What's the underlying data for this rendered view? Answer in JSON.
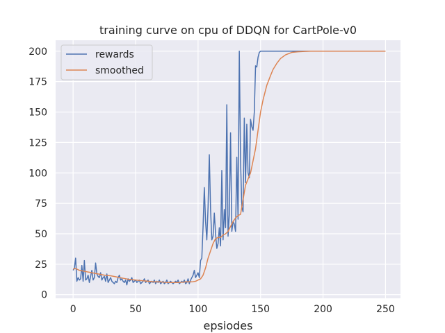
{
  "colors": {
    "plot_bg": "#EAEAF2",
    "grid": "#FFFFFF",
    "rewards": "#4C72B0",
    "smoothed": "#DD8452",
    "text": "#262626"
  },
  "chart_data": {
    "type": "line",
    "title": "training curve on cpu of DDQN for CartPole-v0",
    "xlabel": "epsiodes",
    "ylabel": "",
    "xlim": [
      -14,
      262
    ],
    "ylim": [
      -3,
      209
    ],
    "x_ticks": [
      0,
      50,
      100,
      150,
      200,
      250
    ],
    "y_ticks": [
      0,
      25,
      50,
      75,
      100,
      125,
      150,
      175,
      200
    ],
    "grid": true,
    "legend_position": "top-left",
    "series": [
      {
        "name": "rewards",
        "x": [
          0,
          1,
          2,
          3,
          4,
          5,
          6,
          7,
          8,
          9,
          10,
          11,
          12,
          13,
          14,
          15,
          16,
          17,
          18,
          19,
          20,
          21,
          22,
          23,
          24,
          25,
          26,
          27,
          28,
          29,
          30,
          31,
          32,
          33,
          34,
          35,
          36,
          37,
          38,
          39,
          40,
          41,
          42,
          43,
          44,
          45,
          46,
          47,
          48,
          49,
          50,
          51,
          52,
          53,
          54,
          55,
          56,
          57,
          58,
          59,
          60,
          61,
          62,
          63,
          64,
          65,
          66,
          67,
          68,
          69,
          70,
          71,
          72,
          73,
          74,
          75,
          76,
          77,
          78,
          79,
          80,
          81,
          82,
          83,
          84,
          85,
          86,
          87,
          88,
          89,
          90,
          91,
          92,
          93,
          94,
          95,
          96,
          97,
          98,
          99,
          100,
          101,
          102,
          103,
          104,
          105,
          106,
          107,
          108,
          109,
          110,
          111,
          112,
          113,
          114,
          115,
          116,
          117,
          118,
          119,
          120,
          121,
          122,
          123,
          124,
          125,
          126,
          127,
          128,
          129,
          130,
          131,
          132,
          133,
          134,
          135,
          136,
          137,
          138,
          139,
          140,
          141,
          142,
          143,
          144,
          145,
          146,
          147,
          148,
          149,
          150,
          151,
          152,
          153,
          154,
          155,
          156,
          157,
          158,
          159,
          160,
          165,
          170,
          180,
          190,
          200,
          210,
          220,
          230,
          240,
          250
        ],
        "values": [
          20,
          22,
          30,
          11,
          14,
          12,
          13,
          24,
          11,
          28,
          12,
          13,
          16,
          10,
          15,
          20,
          12,
          14,
          26,
          17,
          15,
          14,
          18,
          12,
          14,
          15,
          11,
          17,
          10,
          12,
          14,
          11,
          10,
          9,
          11,
          10,
          14,
          16,
          12,
          13,
          11,
          10,
          12,
          8,
          13,
          11,
          12,
          14,
          10,
          11,
          12,
          10,
          11,
          12,
          9,
          10,
          11,
          13,
          10,
          11,
          12,
          9,
          10,
          11,
          10,
          12,
          9,
          11,
          10,
          12,
          9,
          10,
          11,
          9,
          10,
          12,
          9,
          10,
          11,
          10,
          9,
          10,
          11,
          10,
          12,
          9,
          10,
          11,
          10,
          12,
          9,
          10,
          13,
          9,
          12,
          14,
          16,
          20,
          14,
          16,
          18,
          14,
          28,
          30,
          56,
          88,
          60,
          45,
          72,
          115,
          70,
          45,
          48,
          67,
          50,
          38,
          42,
          55,
          40,
          102,
          45,
          70,
          55,
          156,
          48,
          66,
          133,
          52,
          60,
          58,
          52,
          113,
          62,
          200,
          110,
          72,
          68,
          145,
          92,
          140,
          100,
          96,
          144,
          138,
          135,
          150,
          188,
          187,
          195,
          199,
          200,
          200,
          200,
          200,
          200,
          200,
          200,
          200,
          200,
          200,
          200,
          200,
          200,
          200,
          200,
          200,
          200,
          200,
          200,
          200,
          200
        ]
      },
      {
        "name": "smoothed",
        "x": [
          0,
          2,
          5,
          10,
          15,
          20,
          25,
          30,
          35,
          40,
          45,
          50,
          55,
          60,
          65,
          70,
          75,
          80,
          85,
          90,
          95,
          98,
          100,
          102,
          104,
          106,
          108,
          110,
          112,
          114,
          116,
          118,
          120,
          122,
          124,
          126,
          128,
          130,
          132,
          134,
          136,
          138,
          140,
          142,
          144,
          146,
          148,
          150,
          152,
          155,
          158,
          160,
          163,
          166,
          170,
          175,
          180,
          185,
          190,
          200,
          210,
          220,
          230,
          240,
          250
        ],
        "values": [
          21,
          21.5,
          20,
          19,
          18,
          17,
          16,
          15.5,
          14.5,
          13.5,
          12.5,
          12,
          11.5,
          11,
          10.5,
          10.5,
          10,
          10,
          10,
          10.5,
          10.5,
          11,
          12,
          13,
          16,
          22,
          30,
          36,
          42,
          46,
          47,
          47,
          49,
          50,
          52,
          56,
          60,
          63,
          65,
          66,
          78,
          90,
          95,
          100,
          110,
          120,
          135,
          150,
          160,
          172,
          180,
          185,
          190,
          194,
          197,
          199,
          199.5,
          199.8,
          200,
          200,
          200,
          200,
          200,
          200,
          200
        ]
      }
    ]
  }
}
